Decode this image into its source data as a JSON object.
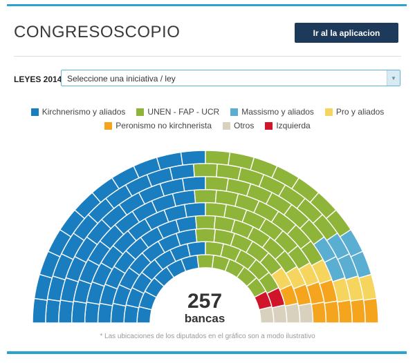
{
  "header": {
    "title": "CONGRESOSCOPIO",
    "app_button": "Ir al la aplicacion"
  },
  "selector": {
    "label": "LEYES 2014:",
    "value": "Seleccione una iniciativa / ley"
  },
  "legend": [
    {
      "label": "Kirchnerismo y aliados",
      "color": "#1a7dbf"
    },
    {
      "label": "UNEN - FAP - UCR",
      "color": "#8fb43a"
    },
    {
      "label": "Massismo y aliados",
      "color": "#5aaed1"
    },
    {
      "label": "Pro y aliados",
      "color": "#f6d55e"
    },
    {
      "label": "Peronismo no kirchnerista",
      "color": "#f5a41e"
    },
    {
      "label": "Otros",
      "color": "#d8d1bd"
    },
    {
      "label": "Izquierda",
      "color": "#d0142a"
    }
  ],
  "chart_data": {
    "type": "parliament",
    "total_seats": 257,
    "seat_unit": "bancas"
  },
  "footnote": "* Las ubicaciones de los diputados en el gráfico son a modo ilustrativo"
}
